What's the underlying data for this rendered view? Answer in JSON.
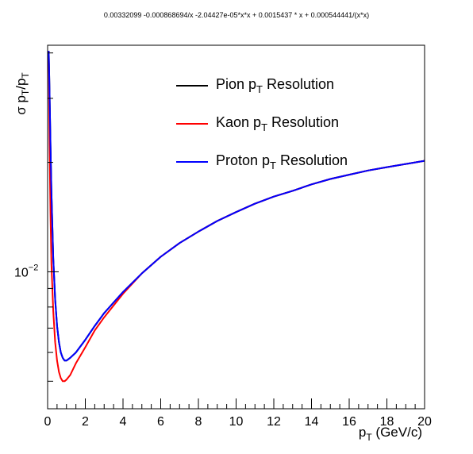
{
  "chart_data": {
    "type": "line",
    "title": "0.00332099 -0.000868694/x -2.04427e-05*x*x + 0.0015437 * x +  0.000544441/(x*x)",
    "xlabel_main": "p",
    "xlabel_sub": "T",
    "xlabel_rest": " (GeV/c)",
    "ylabel_parts": [
      "σ p",
      "T",
      "/p",
      "T"
    ],
    "xlim": [
      0,
      20
    ],
    "ylim": [
      0.0042,
      0.042
    ],
    "yscale": "log",
    "grid": false,
    "legend_position": "top-right",
    "x_ticks": [
      "0",
      "2",
      "4",
      "6",
      "8",
      "10",
      "12",
      "14",
      "16",
      "18",
      "20"
    ],
    "y_tick_label": {
      "base": "10",
      "exp": "−2",
      "value": 0.01
    },
    "series": [
      {
        "name": "Pion p_T Resolution",
        "label_main": "Pion p",
        "label_sub": "T",
        "label_rest": " Resolution",
        "color": "#000000",
        "x": [
          0.06,
          0.1,
          0.15,
          0.2,
          0.3,
          0.4,
          0.5,
          0.6,
          0.7,
          0.8,
          0.9,
          1.0,
          1.2,
          1.5,
          2,
          2.5,
          3,
          4,
          5,
          6,
          7,
          8,
          9,
          10,
          11,
          12,
          13,
          14,
          15,
          16,
          17,
          18,
          19,
          20
        ],
        "y": [
          0.0405,
          0.0316,
          0.0225,
          0.0166,
          0.0109,
          0.0084,
          0.0071,
          0.0064,
          0.006,
          0.0058,
          0.0057,
          0.0057,
          0.0058,
          0.006,
          0.0065,
          0.0071,
          0.0077,
          0.0088,
          0.0099,
          0.011,
          0.012,
          0.0129,
          0.0138,
          0.0146,
          0.0154,
          0.0161,
          0.0167,
          0.0174,
          0.018,
          0.0185,
          0.019,
          0.0194,
          0.0198,
          0.0202
        ]
      },
      {
        "name": "Kaon p_T Resolution",
        "label_main": "Kaon p",
        "label_sub": "T",
        "label_rest": " Resolution",
        "color": "#ff0000",
        "x": [
          0.06,
          0.1,
          0.15,
          0.2,
          0.3,
          0.4,
          0.5,
          0.6,
          0.7,
          0.8,
          0.9,
          1.0,
          1.2,
          1.5,
          2,
          2.5,
          3,
          4,
          5,
          6,
          7,
          8,
          9,
          10,
          11,
          12,
          13,
          14,
          15,
          16,
          17,
          18,
          19,
          20
        ],
        "y": [
          0.0405,
          0.0225,
          0.0145,
          0.0105,
          0.0078,
          0.0064,
          0.0057,
          0.0053,
          0.0051,
          0.005,
          0.005,
          0.00505,
          0.0052,
          0.0056,
          0.0062,
          0.0069,
          0.0075,
          0.0087,
          0.0099,
          0.011,
          0.012,
          0.0129,
          0.0138,
          0.0146,
          0.0154,
          0.0161,
          0.0167,
          0.0174,
          0.018,
          0.0185,
          0.019,
          0.0194,
          0.0198,
          0.0202
        ]
      },
      {
        "name": "Proton p_T Resolution",
        "label_main": "Proton p",
        "label_sub": "T",
        "label_rest": " Resolution",
        "color": "#0000ff",
        "x": [
          0.06,
          0.1,
          0.15,
          0.2,
          0.3,
          0.4,
          0.5,
          0.6,
          0.7,
          0.8,
          0.9,
          1.0,
          1.2,
          1.5,
          2,
          2.5,
          3,
          4,
          5,
          6,
          7,
          8,
          9,
          10,
          11,
          12,
          13,
          14,
          15,
          16,
          17,
          18,
          19,
          20
        ],
        "y": [
          0.0405,
          0.0316,
          0.0225,
          0.0166,
          0.0109,
          0.0084,
          0.0071,
          0.0064,
          0.006,
          0.0058,
          0.0057,
          0.0057,
          0.0058,
          0.006,
          0.0065,
          0.0071,
          0.0077,
          0.0088,
          0.0099,
          0.011,
          0.012,
          0.0129,
          0.0138,
          0.0146,
          0.0154,
          0.0161,
          0.0167,
          0.0174,
          0.018,
          0.0185,
          0.019,
          0.0194,
          0.0198,
          0.0202
        ]
      }
    ]
  }
}
